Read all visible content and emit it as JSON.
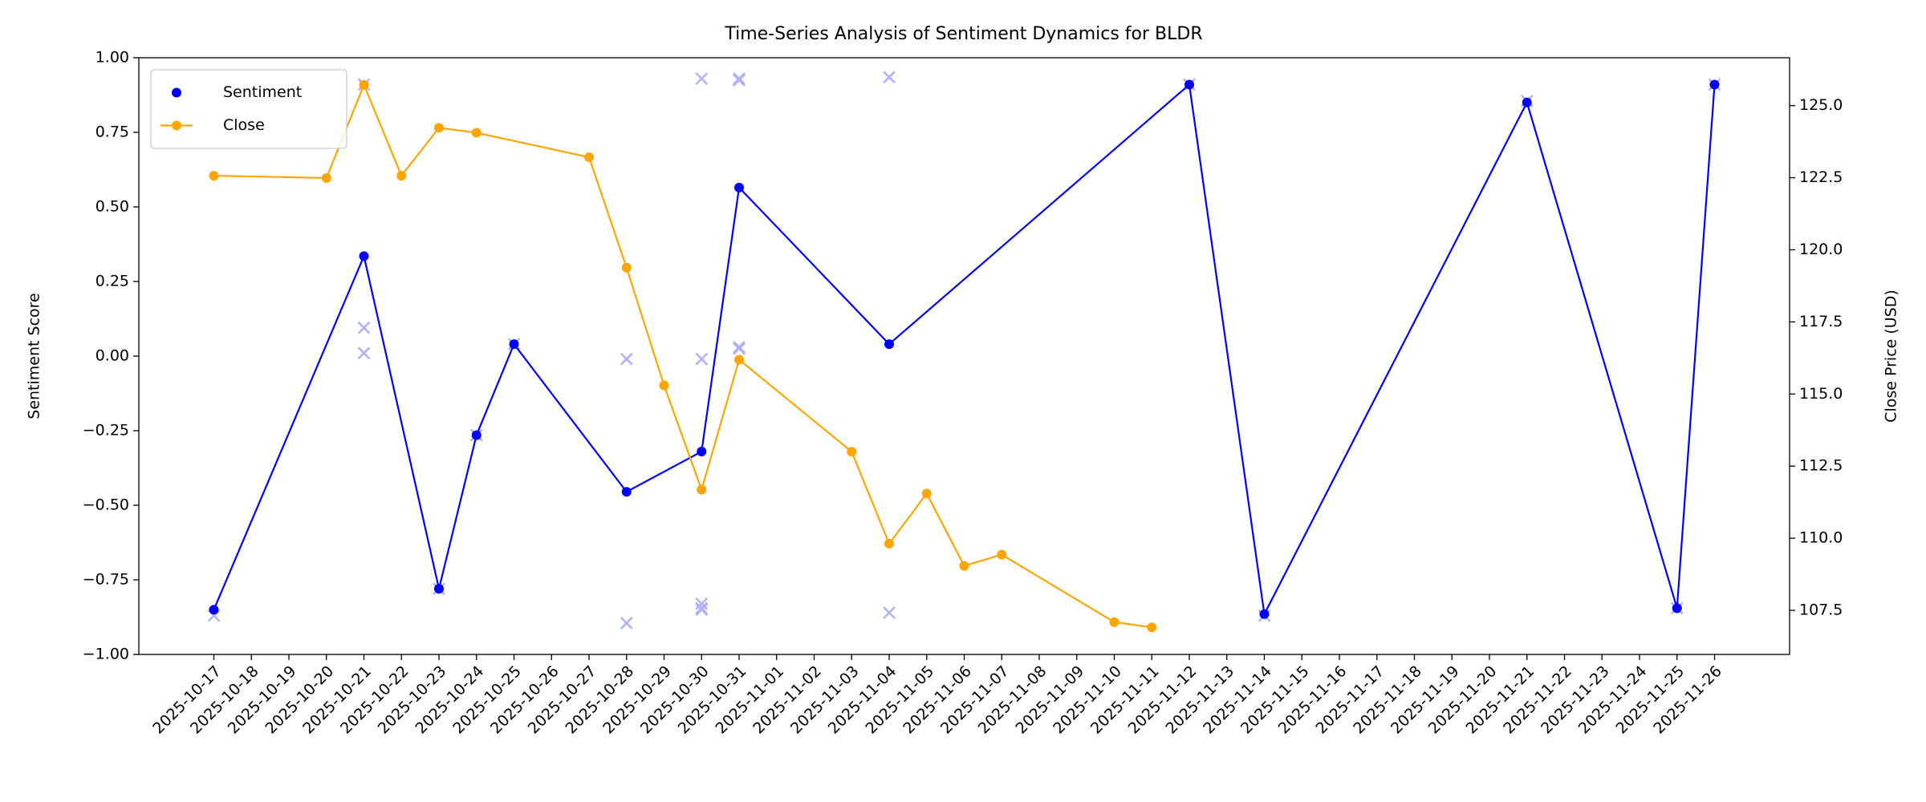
{
  "chart_data": {
    "type": "line",
    "title": "Time-Series Analysis of Sentiment Dynamics for BLDR",
    "ylabel": "Sentiment Score",
    "y2label": "Close Price (USD)",
    "legend": "upper left",
    "xlim": [
      "2025-10-15",
      "2025-11-28"
    ],
    "xticks": [
      "2025-10-17",
      "2025-10-18",
      "2025-10-19",
      "2025-10-20",
      "2025-10-21",
      "2025-10-22",
      "2025-10-23",
      "2025-10-24",
      "2025-10-25",
      "2025-10-26",
      "2025-10-27",
      "2025-10-28",
      "2025-10-29",
      "2025-10-30",
      "2025-10-31",
      "2025-11-01",
      "2025-11-02",
      "2025-11-03",
      "2025-11-04",
      "2025-11-05",
      "2025-11-06",
      "2025-11-07",
      "2025-11-08",
      "2025-11-09",
      "2025-11-10",
      "2025-11-11",
      "2025-11-12",
      "2025-11-13",
      "2025-11-14",
      "2025-11-15",
      "2025-11-16",
      "2025-11-17",
      "2025-11-18",
      "2025-11-19",
      "2025-11-20",
      "2025-11-21",
      "2025-11-22",
      "2025-11-23",
      "2025-11-24",
      "2025-11-25",
      "2025-11-26"
    ],
    "ylim": [
      -1,
      1
    ],
    "yticks": [
      {
        "value": -1,
        "label": "−1.00"
      },
      {
        "value": -0.75,
        "label": "−0.75"
      },
      {
        "value": -0.5,
        "label": "−0.50"
      },
      {
        "value": -0.25,
        "label": "−0.25"
      },
      {
        "value": 0,
        "label": "0.00"
      },
      {
        "value": 0.25,
        "label": "0.25"
      },
      {
        "value": 0.5,
        "label": "0.50"
      },
      {
        "value": 0.75,
        "label": "0.75"
      },
      {
        "value": 1,
        "label": "1.00"
      }
    ],
    "y2lim": [
      105.97,
      126.66
    ],
    "y2ticks": [
      107.5,
      {
        "value": 110,
        "label": "110.0"
      },
      112.5,
      {
        "value": 115,
        "label": "115.0"
      },
      117.5,
      {
        "value": 120,
        "label": "120.0"
      },
      122.5,
      {
        "value": 125,
        "label": "125.0"
      }
    ],
    "series": [
      {
        "marker": "x",
        "color": "#0000ff",
        "opacity": 0.3,
        "x": [
          "2025-10-17",
          "2025-10-21",
          "2025-10-21",
          "2025-10-21",
          "2025-10-23",
          "2025-10-24",
          "2025-10-25",
          "2025-10-28",
          "2025-10-28",
          "2025-10-30",
          "2025-10-30",
          "2025-10-30",
          "2025-10-30",
          "2025-10-30",
          "2025-10-31",
          "2025-10-31",
          "2025-10-31",
          "2025-10-31",
          "2025-11-04",
          "2025-11-04",
          "2025-11-12",
          "2025-11-14",
          "2025-11-21",
          "2025-11-25",
          "2025-11-26"
        ],
        "values": [
          -0.87,
          0.91,
          0.095,
          0.01,
          -0.78,
          -0.265,
          0.04,
          -0.01,
          -0.895,
          0.93,
          -0.01,
          -0.83,
          -0.845,
          -0.85,
          0.93,
          0.925,
          0.03,
          0.025,
          0.935,
          -0.86,
          0.91,
          -0.87,
          0.855,
          -0.845,
          0.91
        ]
      },
      {
        "name": "Sentiment",
        "marker": "o",
        "legend_line": false,
        "color": "#0000ff",
        "x": [
          "2025-10-17",
          "2025-10-21",
          "2025-10-23",
          "2025-10-24",
          "2025-10-25",
          "2025-10-28",
          "2025-10-30",
          "2025-10-31",
          "2025-11-04",
          "2025-11-12",
          "2025-11-14",
          "2025-11-21",
          "2025-11-25",
          "2025-11-26"
        ],
        "values": [
          -0.85,
          0.335,
          -0.78,
          -0.265,
          0.04,
          -0.455,
          -0.32,
          0.565,
          0.04,
          0.91,
          -0.865,
          0.85,
          -0.845,
          0.91
        ]
      },
      {
        "name": "Close",
        "marker": "o",
        "legend_line": true,
        "color": "#ffa500",
        "axis": "y2",
        "x": [
          "2025-10-17",
          "2025-10-20",
          "2025-10-21",
          "2025-10-22",
          "2025-10-23",
          "2025-10-24",
          "2025-10-27",
          "2025-10-28",
          "2025-10-29",
          "2025-10-30",
          "2025-10-31",
          "2025-11-03",
          "2025-11-04",
          "2025-11-05",
          "2025-11-06",
          "2025-11-07",
          "2025-11-10",
          "2025-11-11"
        ],
        "values": [
          122.57,
          122.49,
          125.72,
          122.57,
          124.23,
          124.06,
          123.21,
          119.38,
          115.3,
          111.68,
          116.19,
          113.0,
          109.81,
          111.55,
          109.04,
          109.43,
          107.09,
          106.91
        ]
      }
    ]
  }
}
